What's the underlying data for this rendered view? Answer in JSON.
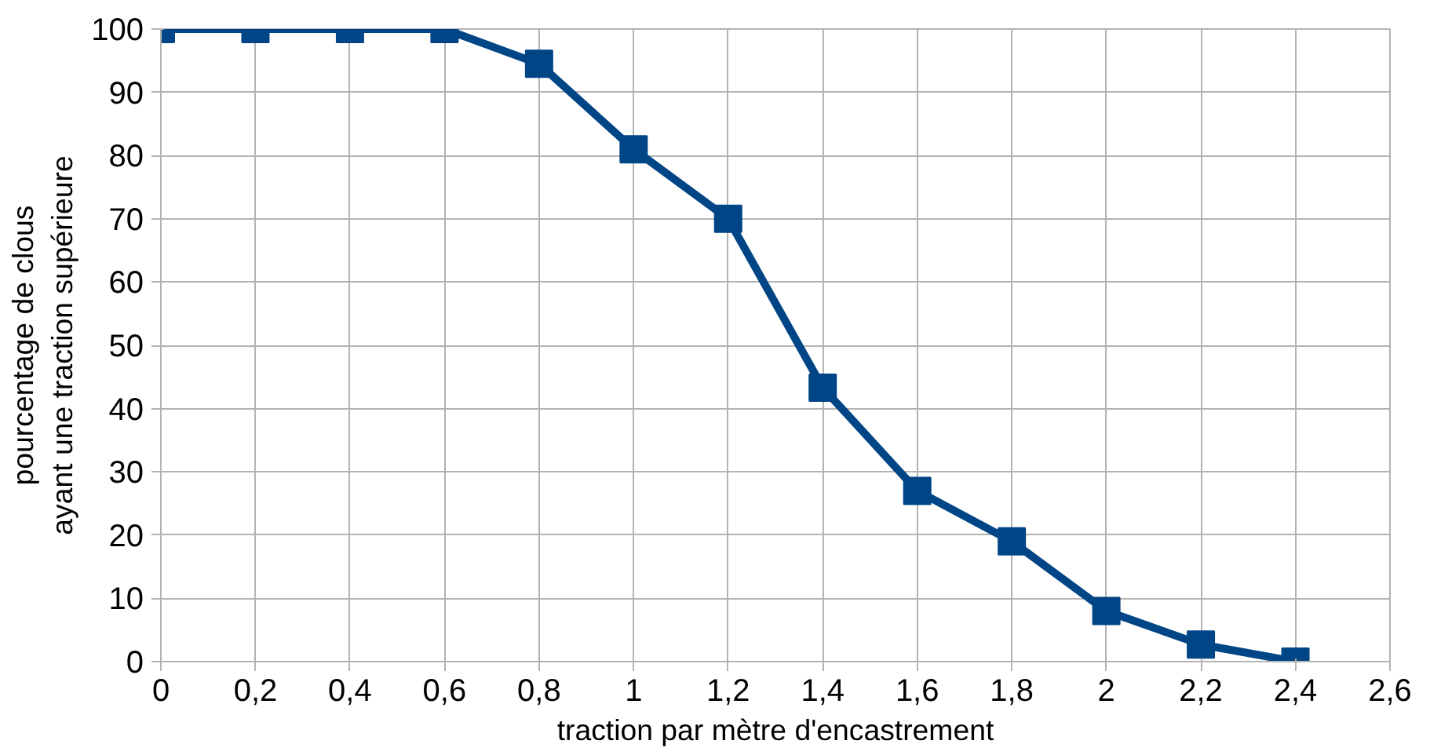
{
  "chart_data": {
    "type": "line",
    "xlabel": "traction par mètre d'encastrement",
    "ylabel": "pourcentage de clous\nayant une traction supérieure",
    "x": [
      0,
      0.2,
      0.4,
      0.6,
      0.8,
      1,
      1.2,
      1.4,
      1.6,
      1.8,
      2,
      2.2,
      2.4
    ],
    "series": [
      {
        "color": "#004586",
        "values": [
          100,
          100,
          100,
          100,
          94.5,
          81,
          70,
          43.3,
          27,
          19,
          8,
          2.7,
          0
        ]
      }
    ],
    "xlim": [
      0,
      2.6
    ],
    "xticks": [
      0,
      {
        "value": 0.2,
        "label": "0,2"
      },
      {
        "value": 0.4,
        "label": "0,4"
      },
      {
        "value": 0.6,
        "label": "0,6"
      },
      {
        "value": 0.8,
        "label": "0,8"
      },
      1,
      {
        "value": 1.2,
        "label": "1,2"
      },
      {
        "value": 1.4,
        "label": "1,4"
      },
      {
        "value": 1.6,
        "label": "1,6"
      },
      {
        "value": 1.8,
        "label": "1,8"
      },
      2,
      {
        "value": 2.2,
        "label": "2,2"
      },
      {
        "value": 2.4,
        "label": "2,4"
      },
      {
        "value": 2.6,
        "label": "2,6"
      }
    ],
    "ylim": [
      0,
      100
    ],
    "yticks": [
      0,
      10,
      20,
      30,
      40,
      50,
      60,
      70,
      80,
      90,
      100
    ],
    "grid": true,
    "marker": "square",
    "line_style": "solid"
  }
}
